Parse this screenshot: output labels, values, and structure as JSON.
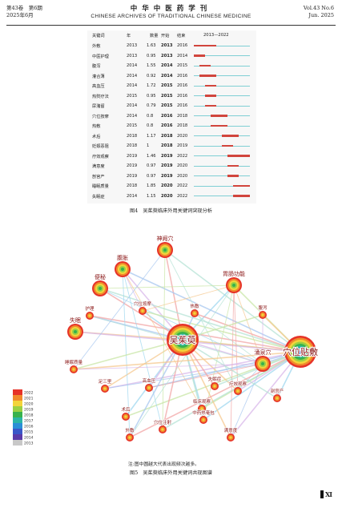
{
  "header": {
    "left_line1": "第43卷　第6期",
    "left_line2": "2025年6月",
    "journal_cn": "中华中医药学刊",
    "journal_en": "CHINESE ARCHIVES OF TRADITIONAL CHINESE MEDICINE",
    "right_line1": "Vol.43 No.6",
    "right_line2": "Jun. 2025"
  },
  "burst_table": {
    "headers": {
      "keyword": "关键词",
      "year": "年",
      "strength": "数量",
      "begin": "开始",
      "end": "结束",
      "range": "2013—2022"
    },
    "range_start": 2013,
    "range_end": 2022,
    "rows": [
      {
        "keyword": "外敷",
        "year": "2013",
        "strength": "1.63",
        "begin": "2013",
        "end": "2016"
      },
      {
        "keyword": "中医护理",
        "year": "2013",
        "strength": "0.95",
        "begin": "2013",
        "end": "2014"
      },
      {
        "keyword": "腹泻",
        "year": "2014",
        "strength": "1.55",
        "begin": "2014",
        "end": "2015"
      },
      {
        "keyword": "灌合薄",
        "year": "2014",
        "strength": "0.92",
        "begin": "2014",
        "end": "2016"
      },
      {
        "keyword": "高血压",
        "year": "2014",
        "strength": "1.72",
        "begin": "2015",
        "end": "2016"
      },
      {
        "keyword": "热熨疗法",
        "year": "2015",
        "strength": "0.95",
        "begin": "2015",
        "end": "2016"
      },
      {
        "keyword": "尿潴留",
        "year": "2014",
        "strength": "0.79",
        "begin": "2015",
        "end": "2016"
      },
      {
        "keyword": "穴位按摩",
        "year": "2014",
        "strength": "0.8",
        "begin": "2016",
        "end": "2018"
      },
      {
        "keyword": "热敷",
        "year": "2015",
        "strength": "0.8",
        "begin": "2016",
        "end": "2018"
      },
      {
        "keyword": "术后",
        "year": "2018",
        "strength": "1.17",
        "begin": "2018",
        "end": "2020"
      },
      {
        "keyword": "妊娠恶阻",
        "year": "2018",
        "strength": "1",
        "begin": "2018",
        "end": "2019"
      },
      {
        "keyword": "疗效观察",
        "year": "2019",
        "strength": "1.46",
        "begin": "2019",
        "end": "2022"
      },
      {
        "keyword": "满意度",
        "year": "2019",
        "strength": "0.97",
        "begin": "2019",
        "end": "2020"
      },
      {
        "keyword": "剖宫产",
        "year": "2019",
        "strength": "0.97",
        "begin": "2019",
        "end": "2020"
      },
      {
        "keyword": "睡眠质量",
        "year": "2018",
        "strength": "1.85",
        "begin": "2020",
        "end": "2022"
      },
      {
        "keyword": "失眠症",
        "year": "2014",
        "strength": "1.15",
        "begin": "2020",
        "end": "2022"
      }
    ]
  },
  "figure4_caption": "图4　吴茱萸临床外用关键词突现分析",
  "network": {
    "legend_years": [
      "2022",
      "2021",
      "2020",
      "2019",
      "2018",
      "2017",
      "2016",
      "2015",
      "2014",
      "2013"
    ],
    "legend_colors": [
      "#e63228",
      "#f08a2c",
      "#f3d43a",
      "#9bd043",
      "#37b24d",
      "#2bb5a5",
      "#2a8fd6",
      "#3a56c8",
      "#5a3aa8",
      "#c8c8c8"
    ],
    "nodes": [
      {
        "label": "吴茱萸",
        "size": "large"
      },
      {
        "label": "穴位贴敷",
        "size": "large"
      },
      {
        "label": "涌泉穴",
        "size": "medium"
      },
      {
        "label": "神阙穴",
        "size": "medium"
      },
      {
        "label": "胃肠功能",
        "size": "medium"
      },
      {
        "label": "腹胀",
        "size": "medium"
      },
      {
        "label": "便秘",
        "size": "medium"
      },
      {
        "label": "失眠",
        "size": "medium"
      },
      {
        "label": "护理",
        "size": "small"
      },
      {
        "label": "穴位按摩",
        "size": "small"
      },
      {
        "label": "热敷",
        "size": "small"
      },
      {
        "label": "术后",
        "size": "small"
      },
      {
        "label": "疗效观察",
        "size": "small"
      },
      {
        "label": "临床观察",
        "size": "small"
      },
      {
        "label": "高血压",
        "size": "small"
      },
      {
        "label": "中药热奄包",
        "size": "small"
      },
      {
        "label": "足三里",
        "size": "small"
      },
      {
        "label": "穴位注射",
        "size": "small"
      },
      {
        "label": "满意度",
        "size": "small"
      },
      {
        "label": "剖宫产",
        "size": "small"
      },
      {
        "label": "腹泻",
        "size": "small"
      },
      {
        "label": "外敷",
        "size": "small"
      },
      {
        "label": "睡眠质量",
        "size": "small"
      },
      {
        "label": "失眠症",
        "size": "small"
      }
    ]
  },
  "figure5_note": "注:图中圆越大代表出现频次越多。",
  "figure5_caption": "图5　吴茱萸临床外用关键词共现图谱",
  "page_number": "Ⅺ"
}
